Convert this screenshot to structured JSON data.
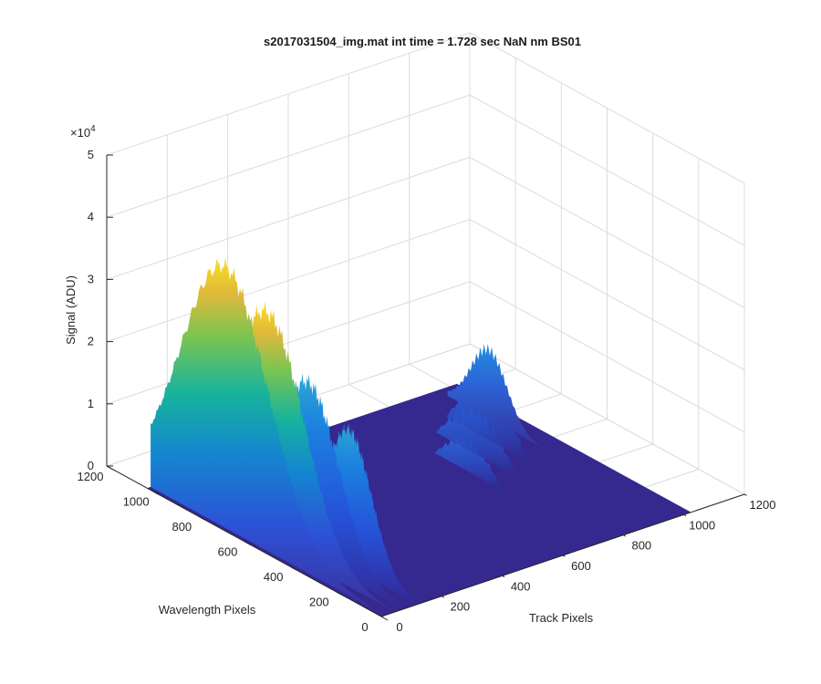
{
  "chart_data": {
    "type": "surface",
    "title": "s2017031504_img.mat int time = 1.728 sec  NaN nm BS01",
    "xlabel": "Track Pixels",
    "ylabel": "Wavelength Pixels",
    "zlabel": "Signal (ADU)",
    "z_exponent_label": "×10",
    "z_exponent_power": "4",
    "xlim": [
      0,
      1200
    ],
    "ylim": [
      0,
      1200
    ],
    "zlim": [
      0,
      50000
    ],
    "x_ticks": [
      "0",
      "200",
      "400",
      "600",
      "800",
      "1000",
      "1200"
    ],
    "y_ticks": [
      "0",
      "200",
      "400",
      "600",
      "800",
      "1000",
      "1200"
    ],
    "z_ticks": [
      "0",
      "1",
      "2",
      "3",
      "4",
      "5"
    ],
    "grid": true,
    "colormap": "parula",
    "data_extent": {
      "track_pixels": [
        0,
        1024
      ],
      "wavelength_pixels": [
        0,
        1024
      ]
    },
    "peaks": [
      {
        "track_pixel": 70,
        "wavelength_pixel": 560,
        "signal": 37000
      },
      {
        "track_pixel": 18,
        "wavelength_pixel": 760,
        "signal": 42000
      },
      {
        "track_pixel": 40,
        "wavelength_pixel": 400,
        "signal": 28000
      },
      {
        "track_pixel": 95,
        "wavelength_pixel": 300,
        "signal": 22000
      },
      {
        "track_pixel": 900,
        "wavelength_pixel": 800,
        "signal": 12000
      },
      {
        "track_pixel": 800,
        "wavelength_pixel": 650,
        "signal": 8000
      },
      {
        "track_pixel": 720,
        "wavelength_pixel": 560,
        "signal": 6000
      }
    ]
  }
}
